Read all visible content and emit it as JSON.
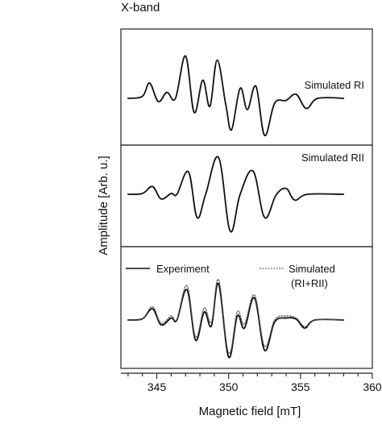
{
  "figure": {
    "band_title": "X-band"
  },
  "chart_data": {
    "type": "line",
    "xlabel": "Magnetic field [mT]",
    "ylabel": "Amplitude [Arb. u.]",
    "xlim": [
      342.5,
      360
    ],
    "xticks": [
      345,
      350,
      355,
      360
    ],
    "grid": false,
    "panels": [
      {
        "label": "Simulated RI",
        "ylim": [
          -1.2,
          1.2
        ],
        "series": [
          {
            "style": "solid",
            "color": "#111111",
            "x": [
              343.0,
              344.0,
              344.5,
              345.1,
              345.7,
              346.3,
              347.0,
              347.6,
              348.2,
              348.7,
              349.2,
              349.8,
              350.2,
              350.8,
              351.3,
              351.9,
              352.5,
              353.2,
              354.0,
              354.7,
              355.4,
              356.2,
              358.0
            ],
            "y": [
              0.0,
              0.05,
              0.38,
              -0.08,
              0.15,
              0.0,
              1.05,
              -0.35,
              0.45,
              -0.2,
              0.95,
              -0.15,
              -0.78,
              0.25,
              -0.28,
              0.3,
              -0.92,
              -0.12,
              -0.05,
              0.1,
              -0.25,
              0.0,
              0.0
            ]
          }
        ]
      },
      {
        "label": "Simulated RII",
        "ylim": [
          -1.2,
          1.2
        ],
        "series": [
          {
            "style": "solid",
            "color": "#111111",
            "x": [
              343.0,
              344.0,
              344.7,
              345.3,
              346.0,
              346.4,
              347.2,
              347.8,
              348.4,
              349.3,
              350.1,
              350.8,
              351.7,
              352.5,
              353.3,
              354.0,
              354.6,
              355.5,
              358.0
            ],
            "y": [
              0.0,
              0.02,
              0.2,
              -0.12,
              0.02,
              0.0,
              0.58,
              -0.6,
              0.0,
              0.95,
              -0.95,
              0.0,
              0.6,
              -0.6,
              -0.02,
              0.15,
              -0.15,
              0.0,
              0.0
            ]
          }
        ]
      },
      {
        "label": "",
        "ylim": [
          -1.2,
          1.2
        ],
        "legend": {
          "placement": "top",
          "entries": [
            {
              "name": "Experiment",
              "style": "solid"
            },
            {
              "name": "Simulated",
              "name_line2": "(RI+RII)",
              "style": "dotted"
            }
          ]
        },
        "series": [
          {
            "name": "Experiment",
            "style": "solid",
            "color": "#111111",
            "x": [
              343.0,
              344.0,
              344.7,
              345.3,
              346.0,
              346.4,
              347.1,
              347.7,
              348.3,
              348.8,
              349.3,
              350.0,
              350.6,
              351.1,
              351.8,
              352.5,
              353.2,
              354.0,
              354.7,
              355.3,
              356.0,
              358.0
            ],
            "y": [
              0.0,
              0.03,
              0.28,
              -0.12,
              0.05,
              0.0,
              0.75,
              -0.5,
              0.2,
              -0.15,
              0.9,
              -0.92,
              0.1,
              -0.2,
              0.55,
              -0.75,
              -0.05,
              0.05,
              0.02,
              -0.2,
              0.0,
              0.0
            ]
          },
          {
            "name": "Simulated (RI+RII)",
            "style": "dotted",
            "color": "#555555",
            "x": [
              343.0,
              344.0,
              344.7,
              345.3,
              346.0,
              346.4,
              347.1,
              347.7,
              348.3,
              348.8,
              349.3,
              350.0,
              350.6,
              351.1,
              351.8,
              352.5,
              353.2,
              354.0,
              354.7,
              355.3,
              356.0,
              358.0
            ],
            "y": [
              0.0,
              0.03,
              0.33,
              -0.08,
              0.1,
              0.02,
              0.85,
              -0.42,
              0.3,
              -0.05,
              1.0,
              -0.82,
              0.2,
              -0.1,
              0.62,
              -0.65,
              0.0,
              0.1,
              0.05,
              -0.16,
              0.0,
              0.0
            ]
          }
        ]
      }
    ]
  }
}
